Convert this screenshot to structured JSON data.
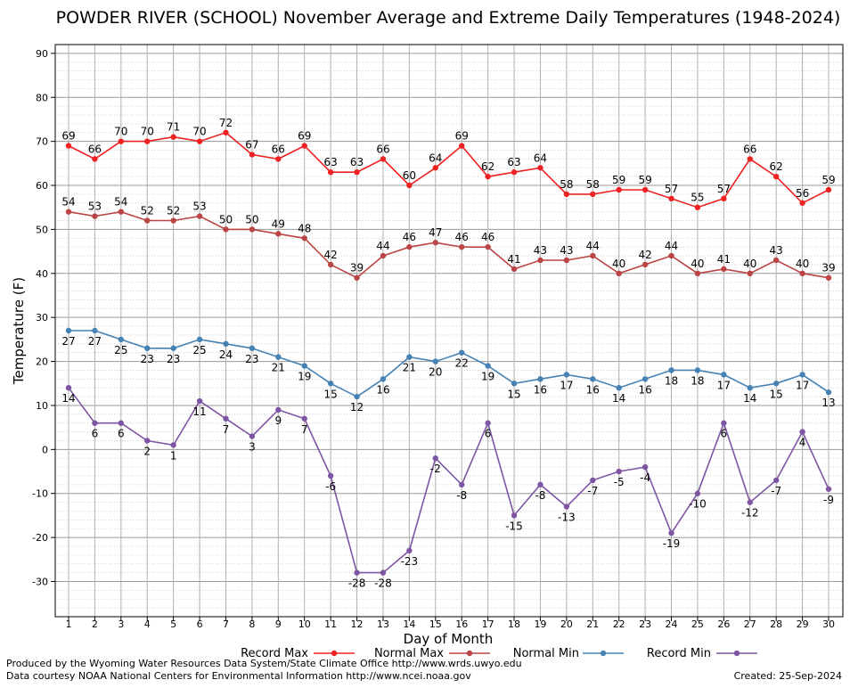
{
  "chart_data": {
    "type": "line",
    "title": "POWDER RIVER (SCHOOL) November Average and Extreme Daily Temperatures (1948-2024)",
    "xlabel": "Day of Month",
    "ylabel": "Temperature (F)",
    "ylim": [
      -38,
      92
    ],
    "yticks": [
      90,
      80,
      70,
      60,
      50,
      40,
      30,
      20,
      10,
      0,
      -10,
      -20,
      -30
    ],
    "grid": true,
    "legend_position": "bottom",
    "x": [
      1,
      2,
      3,
      4,
      5,
      6,
      7,
      8,
      9,
      10,
      11,
      12,
      13,
      14,
      15,
      16,
      17,
      18,
      19,
      20,
      21,
      22,
      23,
      24,
      25,
      26,
      27,
      28,
      29,
      30
    ],
    "series": [
      {
        "name": "Record Max",
        "color": "#ee2222",
        "label_pos": "above",
        "values": [
          69,
          66,
          70,
          70,
          71,
          70,
          72,
          67,
          66,
          69,
          63,
          63,
          66,
          60,
          64,
          69,
          62,
          63,
          64,
          58,
          58,
          59,
          59,
          57,
          55,
          57,
          66,
          62,
          56,
          59
        ]
      },
      {
        "name": "Normal Max",
        "color": "#bb4444",
        "label_pos": "above",
        "values": [
          54,
          53,
          54,
          52,
          52,
          53,
          50,
          50,
          49,
          48,
          42,
          39,
          44,
          46,
          47,
          46,
          46,
          41,
          43,
          43,
          44,
          40,
          42,
          44,
          40,
          41,
          40,
          43,
          40,
          39
        ]
      },
      {
        "name": "Normal Min",
        "color": "#4682b4",
        "label_pos": "below",
        "values": [
          27,
          27,
          25,
          23,
          23,
          25,
          24,
          23,
          21,
          19,
          15,
          12,
          16,
          21,
          20,
          22,
          19,
          15,
          16,
          17,
          16,
          14,
          16,
          18,
          18,
          17,
          14,
          15,
          17,
          13
        ]
      },
      {
        "name": "Record Min",
        "color": "#7e55a3",
        "label_pos": "below",
        "values": [
          14,
          6,
          6,
          2,
          1,
          11,
          7,
          3,
          9,
          7,
          -6,
          -28,
          -28,
          -23,
          -2,
          -8,
          6,
          -15,
          -8,
          -13,
          -7,
          -5,
          -4,
          -19,
          -10,
          6,
          -12,
          -7,
          4,
          -9
        ]
      }
    ]
  },
  "footer": {
    "produced_by": "Produced by the Wyoming Water Resources Data System/State Climate Office http://www.wrds.uwyo.edu",
    "courtesy": "Data courtesy NOAA National Centers for Environmental Information http://www.ncei.noaa.gov",
    "created": "Created:  25-Sep-2024"
  }
}
